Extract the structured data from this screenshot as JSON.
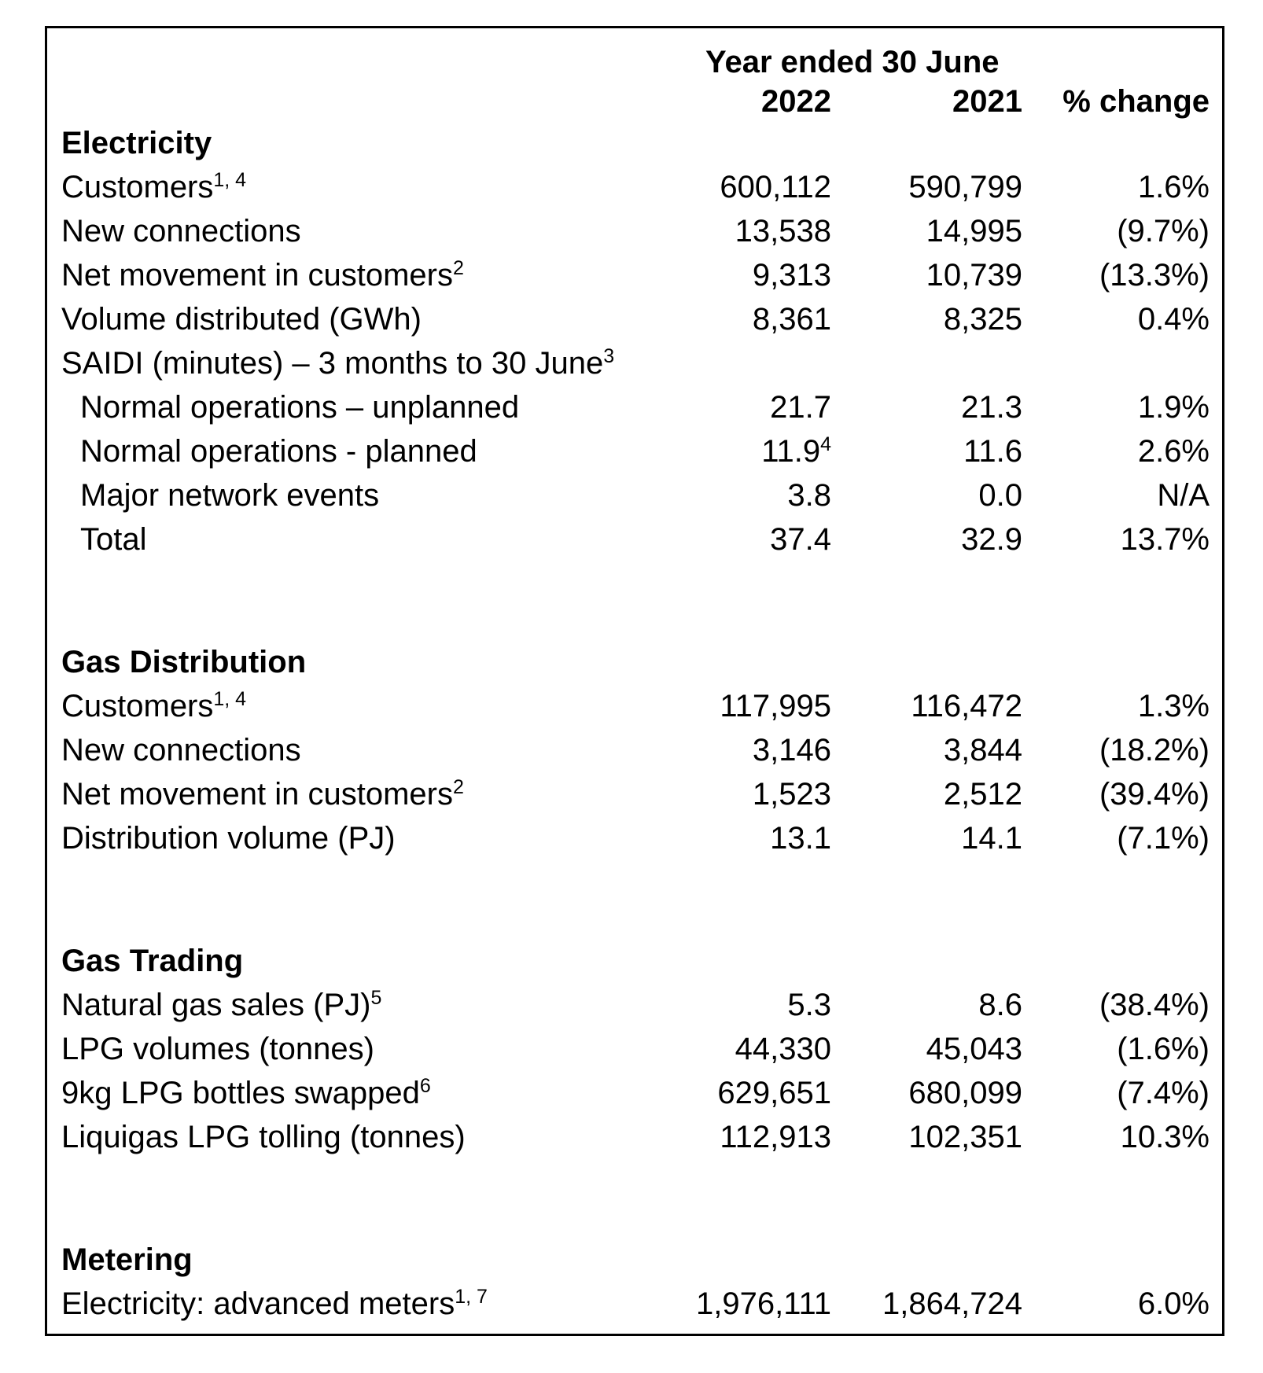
{
  "table": {
    "period_header": "Year ended 30 June",
    "columns": {
      "y2022": "2022",
      "y2021": "2021",
      "change": "% change"
    },
    "rows": [
      {
        "type": "section",
        "label": "Electricity"
      },
      {
        "label": "Customers",
        "sup": "1, 4",
        "y2022": "600,112",
        "y2021": "590,799",
        "change": "1.6%"
      },
      {
        "label": "New connections",
        "y2022": "13,538",
        "y2021": "14,995",
        "change": "(9.7%)"
      },
      {
        "label": "Net movement in customers",
        "sup": "2",
        "y2022": "9,313",
        "y2021": "10,739",
        "change": "(13.3%)"
      },
      {
        "label": "Volume distributed (GWh)",
        "y2022": "8,361",
        "y2021": "8,325",
        "change": "0.4%"
      },
      {
        "label": "SAIDI (minutes) – 3 months to 30 June",
        "sup": "3"
      },
      {
        "label": "Normal operations – unplanned",
        "indent": true,
        "y2022": "21.7",
        "y2021": "21.3",
        "change": "1.9%"
      },
      {
        "label": "Normal operations - planned",
        "indent": true,
        "y2022": "11.9",
        "y2022sup": "4",
        "y2021": "11.6",
        "change": "2.6%"
      },
      {
        "label": "Major network events",
        "indent": true,
        "y2022": "3.8",
        "y2021": "0.0",
        "change": "N/A"
      },
      {
        "label": "Total",
        "indent": true,
        "y2022": "37.4",
        "y2021": "32.9",
        "change": "13.7%"
      },
      {
        "type": "section",
        "label": "Gas Distribution"
      },
      {
        "label": "Customers",
        "sup": "1, 4",
        "y2022": "117,995",
        "y2021": "116,472",
        "change": "1.3%"
      },
      {
        "label": "New connections",
        "y2022": "3,146",
        "y2021": "3,844",
        "change": "(18.2%)"
      },
      {
        "label": "Net movement in customers",
        "sup": "2",
        "y2022": "1,523",
        "y2021": "2,512",
        "change": "(39.4%)"
      },
      {
        "label": "Distribution volume (PJ)",
        "y2022": "13.1",
        "y2021": "14.1",
        "change": "(7.1%)"
      },
      {
        "type": "section",
        "label": "Gas Trading"
      },
      {
        "label": "Natural gas sales (PJ)",
        "sup": "5",
        "y2022": "5.3",
        "y2021": "8.6",
        "change": "(38.4%)"
      },
      {
        "label": "LPG volumes (tonnes)",
        "y2022": "44,330",
        "y2021": "45,043",
        "change": "(1.6%)"
      },
      {
        "label": "9kg LPG bottles swapped",
        "sup": "6",
        "y2022": "629,651",
        "y2021": "680,099",
        "change": "(7.4%)"
      },
      {
        "label": "Liquigas LPG tolling (tonnes)",
        "y2022": "112,913",
        "y2021": "102,351",
        "change": "10.3%"
      },
      {
        "type": "section",
        "label": "Metering"
      },
      {
        "label": "Electricity: advanced meters",
        "sup": "1, 7",
        "y2022": "1,976,111",
        "y2021": "1,864,724",
        "change": "6.0%"
      }
    ]
  }
}
